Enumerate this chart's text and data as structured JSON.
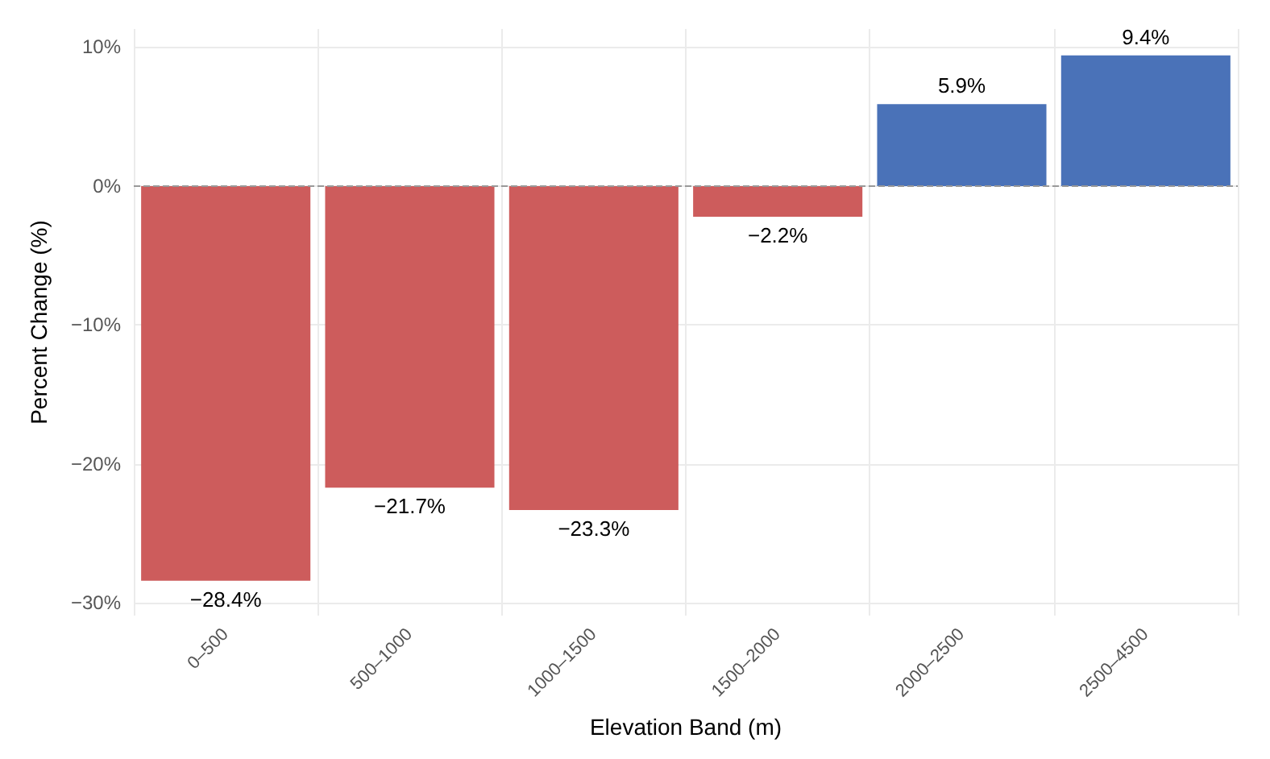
{
  "chart_data": {
    "type": "bar",
    "xlabel": "Elevation Band (m)",
    "ylabel": "Percent Change (%)",
    "categories": [
      "0–500",
      "500–1000",
      "1000–1500",
      "1500–2000",
      "2000–2500",
      "2500–4500"
    ],
    "values": [
      -28.4,
      -21.7,
      -23.3,
      -2.2,
      5.9,
      9.4
    ],
    "colors": [
      "#cd5c5c",
      "#cd5c5c",
      "#cd5c5c",
      "#cd5c5c",
      "#4a72b8",
      "#4a72b8"
    ],
    "value_labels": [
      "−28.4%",
      "−21.7%",
      "−23.3%",
      "−2.2%",
      "5.9%",
      "9.4%"
    ],
    "ylim": [
      -30.9,
      11.3
    ],
    "yticks": [
      {
        "value": -30,
        "label": "−30%"
      },
      {
        "value": -20,
        "label": "−20%"
      },
      {
        "value": -10,
        "label": "−10%"
      },
      {
        "value": 0,
        "label": "0%"
      },
      {
        "value": 10,
        "label": "10%"
      }
    ],
    "ref_lines": [
      {
        "axis": "y",
        "value": 0,
        "label": null,
        "color": "#999999",
        "line_style": "dashed"
      }
    ],
    "grid": true
  }
}
